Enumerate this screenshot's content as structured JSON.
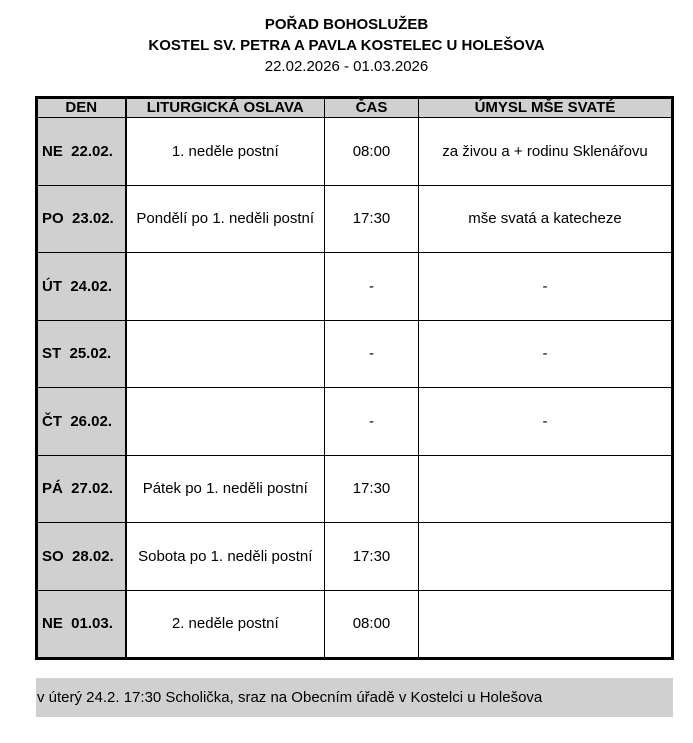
{
  "header": {
    "title": "POŘAD BOHOSLUŽEB",
    "church": "KOSTEL SV. PETRA A PAVLA KOSTELEC U HOLEŠOVA",
    "date_range": "22.02.2026 - 01.03.2026"
  },
  "table": {
    "columns": [
      "DEN",
      "LITURGICKÁ OSLAVA",
      "ČAS",
      "ÚMYSL MŠE SVATÉ"
    ],
    "rows": [
      {
        "day": "NE  22.02.",
        "celebration": "1. neděle postní",
        "time": "08:00",
        "intention": "za živou a + rodinu Sklenářovu"
      },
      {
        "day": "PO  23.02.",
        "celebration": "Pondělí po 1. neděli postní",
        "time": "17:30",
        "intention": "mše svatá a katecheze"
      },
      {
        "day": "ÚT  24.02.",
        "celebration": "",
        "time": "-",
        "intention": "-"
      },
      {
        "day": "ST  25.02.",
        "celebration": "",
        "time": "-",
        "intention": "-"
      },
      {
        "day": "ČT  26.02.",
        "celebration": "",
        "time": "-",
        "intention": "-"
      },
      {
        "day": "PÁ  27.02.",
        "celebration": "Pátek po 1. neděli postní",
        "time": "17:30",
        "intention": ""
      },
      {
        "day": "SO  28.02.",
        "celebration": "Sobota po 1. neděli postní",
        "time": "17:30",
        "intention": ""
      },
      {
        "day": "NE  01.03.",
        "celebration": "2. neděle postní",
        "time": "08:00",
        "intention": ""
      }
    ]
  },
  "note": "v úterý 24.2. 17:30 Scholička, sraz na Obecním úřadě v Kostelci u Holešova",
  "colors": {
    "shade": "#d0d0d0",
    "border": "#000000"
  }
}
